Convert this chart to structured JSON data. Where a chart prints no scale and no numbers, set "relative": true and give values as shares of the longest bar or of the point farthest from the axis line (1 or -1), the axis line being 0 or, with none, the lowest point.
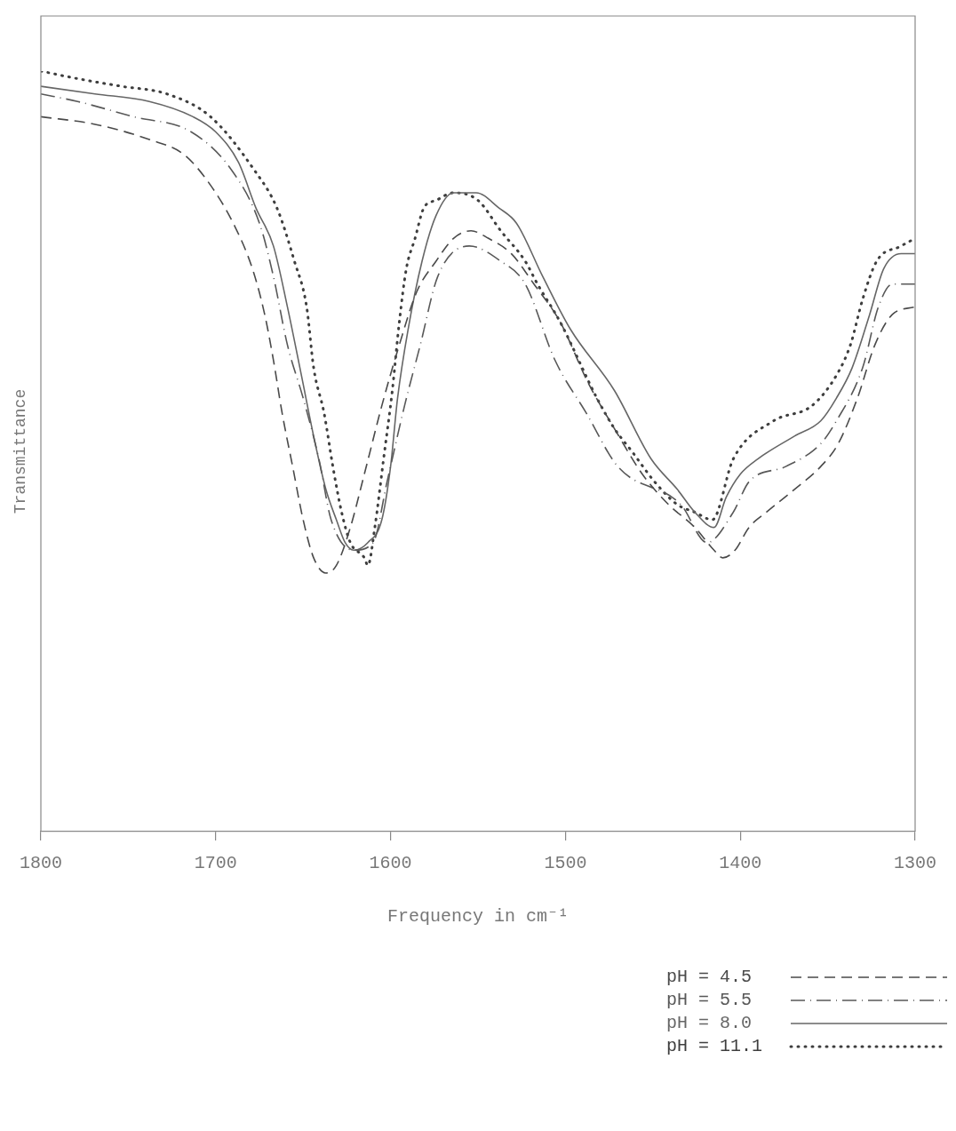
{
  "chart_data": {
    "type": "line",
    "relative": true,
    "xlabel": "Frequency in cm⁻¹",
    "ylabel": "Transmittance",
    "xlim": [
      1800,
      1300
    ],
    "xticks": [
      1800,
      1700,
      1600,
      1500,
      1400,
      1300
    ],
    "legend": "bottom right",
    "grid": false,
    "series": [
      {
        "name": "pH = 4.5",
        "color": "#4a4a4a",
        "line_style": "dashed",
        "x": [
          1800,
          1769,
          1738,
          1718,
          1703,
          1690,
          1679,
          1672,
          1667,
          1662,
          1656,
          1650,
          1644,
          1637,
          1631,
          1623,
          1615,
          1605,
          1595,
          1585,
          1574,
          1564,
          1554,
          1544,
          1531,
          1518,
          1503,
          1487,
          1472,
          1456,
          1441,
          1426,
          1415,
          1410,
          1403,
          1395,
          1385,
          1369,
          1354,
          1344,
          1333,
          1323,
          1313,
          1300
        ],
        "values": [
          0.94,
          0.93,
          0.91,
          0.89,
          0.85,
          0.8,
          0.74,
          0.68,
          0.62,
          0.55,
          0.48,
          0.41,
          0.36,
          0.34,
          0.35,
          0.4,
          0.47,
          0.56,
          0.64,
          0.71,
          0.75,
          0.78,
          0.79,
          0.78,
          0.76,
          0.72,
          0.67,
          0.59,
          0.53,
          0.47,
          0.43,
          0.4,
          0.37,
          0.36,
          0.37,
          0.4,
          0.42,
          0.45,
          0.48,
          0.51,
          0.57,
          0.64,
          0.68,
          0.69
        ]
      },
      {
        "name": "pH = 5.5",
        "color": "#585858",
        "line_style": "dashdot",
        "x": [
          1800,
          1779,
          1747,
          1714,
          1691,
          1675,
          1667,
          1659,
          1650,
          1641,
          1634,
          1621,
          1610,
          1602,
          1592,
          1583,
          1573,
          1555,
          1537,
          1523,
          1506,
          1488,
          1470,
          1434,
          1419,
          1404,
          1395,
          1374,
          1354,
          1345,
          1330,
          1321,
          1313,
          1300
        ],
        "values": [
          0.97,
          0.96,
          0.94,
          0.92,
          0.87,
          0.8,
          0.73,
          0.64,
          0.57,
          0.49,
          0.41,
          0.37,
          0.38,
          0.46,
          0.56,
          0.64,
          0.73,
          0.77,
          0.75,
          0.72,
          0.62,
          0.55,
          0.48,
          0.43,
          0.38,
          0.42,
          0.46,
          0.48,
          0.51,
          0.54,
          0.61,
          0.69,
          0.72,
          0.72
        ]
      },
      {
        "name": "pH = 8.0",
        "color": "#666666",
        "line_style": "solid",
        "x": [
          1800,
          1769,
          1738,
          1713,
          1700,
          1687,
          1677,
          1667,
          1659,
          1651,
          1644,
          1637,
          1631,
          1626,
          1621,
          1613,
          1605,
          1600,
          1596,
          1590,
          1582,
          1574,
          1564,
          1551,
          1538,
          1528,
          1513,
          1497,
          1472,
          1451,
          1436,
          1426,
          1415,
          1408,
          1400,
          1390,
          1369,
          1354,
          1345,
          1336,
          1326,
          1318,
          1308,
          1300
        ],
        "values": [
          0.98,
          0.97,
          0.96,
          0.94,
          0.92,
          0.88,
          0.82,
          0.77,
          0.69,
          0.6,
          0.52,
          0.45,
          0.41,
          0.38,
          0.37,
          0.38,
          0.41,
          0.48,
          0.57,
          0.66,
          0.75,
          0.81,
          0.84,
          0.84,
          0.82,
          0.8,
          0.73,
          0.66,
          0.58,
          0.49,
          0.45,
          0.42,
          0.4,
          0.44,
          0.47,
          0.49,
          0.52,
          0.54,
          0.57,
          0.61,
          0.68,
          0.74,
          0.76,
          0.76
        ]
      },
      {
        "name": "pH = 11.1",
        "color": "#3e3e3e",
        "line_style": "dotted",
        "x": [
          1800,
          1779,
          1754,
          1728,
          1703,
          1678,
          1665,
          1655,
          1648,
          1644,
          1638,
          1633,
          1628,
          1623,
          1615,
          1613,
          1609,
          1604,
          1599,
          1595,
          1591,
          1586,
          1581,
          1574,
          1564,
          1550,
          1537,
          1523,
          1516,
          1503,
          1482,
          1472,
          1462,
          1449,
          1436,
          1426,
          1416,
          1404,
          1381,
          1359,
          1345,
          1337,
          1330,
          1322,
          1308,
          1300
        ],
        "values": [
          1,
          0.99,
          0.98,
          0.97,
          0.94,
          0.87,
          0.82,
          0.75,
          0.69,
          0.61,
          0.55,
          0.48,
          0.42,
          0.38,
          0.36,
          0.35,
          0.4,
          0.49,
          0.58,
          0.67,
          0.74,
          0.78,
          0.82,
          0.83,
          0.84,
          0.83,
          0.79,
          0.75,
          0.72,
          0.67,
          0.57,
          0.53,
          0.5,
          0.46,
          0.43,
          0.42,
          0.41,
          0.49,
          0.54,
          0.56,
          0.6,
          0.64,
          0.7,
          0.75,
          0.77,
          0.78
        ]
      }
    ]
  }
}
